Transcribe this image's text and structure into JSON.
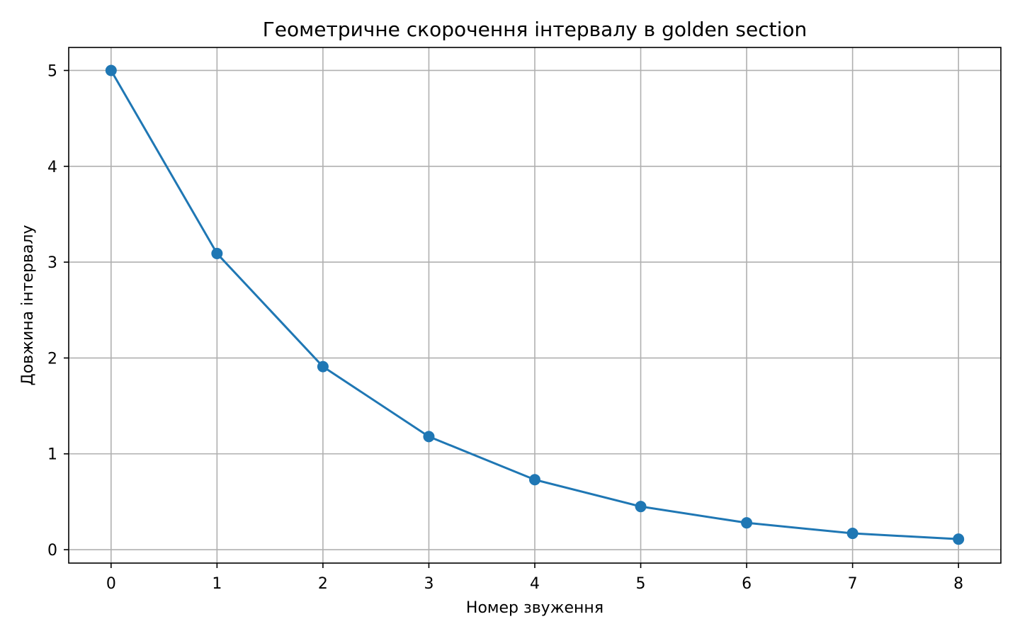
{
  "chart_data": {
    "type": "line",
    "title": "Геометричне скорочення інтервалу в golden section",
    "xlabel": "Номер звуження",
    "ylabel": "Довжина інтервалу",
    "x": [
      0,
      1,
      2,
      3,
      4,
      5,
      6,
      7,
      8
    ],
    "series": [
      {
        "values": [
          5.0,
          3.09,
          1.91,
          1.18,
          0.73,
          0.45,
          0.28,
          0.17,
          0.11
        ],
        "color": "#1f77b4",
        "marker": "circle"
      }
    ],
    "xlim": [
      -0.4,
      8.4
    ],
    "ylim": [
      -0.14,
      5.24
    ],
    "xticks": [
      "0",
      "1",
      "2",
      "3",
      "4",
      "5",
      "6",
      "7",
      "8"
    ],
    "yticks": [
      "0",
      "1",
      "2",
      "3",
      "4",
      "5"
    ],
    "grid": true
  }
}
